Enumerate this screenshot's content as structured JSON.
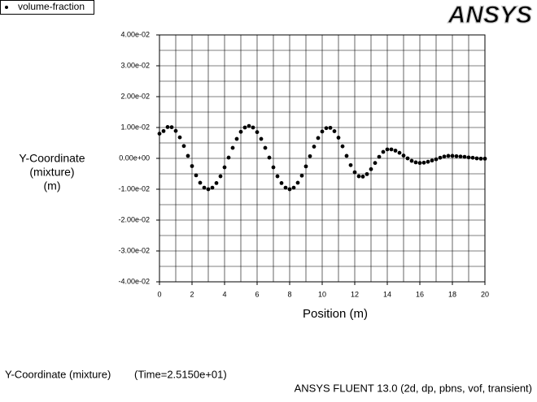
{
  "chart_data": {
    "type": "scatter",
    "logo": "ANSYS",
    "xlabel": "Position (m)",
    "ylabel_lines": [
      "Y-Coordinate",
      "(mixture)",
      "(m)"
    ],
    "footer_left": [
      "Y-Coordinate (mixture)",
      "(Time=2.5150e+01)"
    ],
    "footer_right": "ANSYS FLUENT 13.0 (2d, dp, pbns, vof, transient)",
    "xlim": [
      0,
      20
    ],
    "ylim": [
      -0.04,
      0.04
    ],
    "xticks": [
      0,
      2,
      4,
      6,
      8,
      10,
      12,
      14,
      16,
      18,
      20
    ],
    "x_minor_ticks": [
      1,
      3,
      5,
      7,
      9,
      11,
      13,
      15,
      17,
      19
    ],
    "yticks": [
      {
        "value": 0.04,
        "label": "4.00e-02"
      },
      {
        "value": 0.03,
        "label": "3.00e-02"
      },
      {
        "value": 0.02,
        "label": "2.00e-02"
      },
      {
        "value": 0.01,
        "label": "1.00e-02"
      },
      {
        "value": 0,
        "label": "0.00e+00"
      },
      {
        "value": -0.01,
        "label": "-1.00e-02"
      },
      {
        "value": -0.02,
        "label": "-2.00e-02"
      },
      {
        "value": -0.03,
        "label": "-3.00e-02"
      },
      {
        "value": -0.04,
        "label": "-4.00e-02"
      }
    ],
    "y_minor_ticks": [
      0.035,
      0.025,
      0.015,
      0.005,
      -0.005,
      -0.015,
      -0.025,
      -0.035
    ],
    "grid": true,
    "series": [
      {
        "name": "volume-fraction",
        "color": "#000000",
        "x": [
          0,
          0.25,
          0.5,
          0.75,
          1,
          1.25,
          1.5,
          1.75,
          2,
          2.25,
          2.5,
          2.75,
          3,
          3.25,
          3.5,
          3.75,
          4,
          4.25,
          4.5,
          4.75,
          5,
          5.25,
          5.5,
          5.75,
          6,
          6.25,
          6.5,
          6.75,
          7,
          7.25,
          7.5,
          7.75,
          8,
          8.25,
          8.5,
          8.75,
          9,
          9.25,
          9.5,
          9.75,
          10,
          10.25,
          10.5,
          10.75,
          11,
          11.25,
          11.5,
          11.75,
          12,
          12.25,
          12.5,
          12.75,
          13,
          13.25,
          13.5,
          13.75,
          14,
          14.25,
          14.5,
          14.75,
          15,
          15.25,
          15.5,
          15.75,
          16,
          16.25,
          16.5,
          16.75,
          17,
          17.25,
          17.5,
          17.75,
          18,
          18.25,
          18.5,
          18.75,
          19,
          19.25,
          19.5,
          19.75,
          20
        ],
        "values": [
          0.008,
          0.00885,
          0.01015,
          0.0101,
          0.0089,
          0.0068,
          0.004,
          0.0008,
          -0.0025,
          -0.0055,
          -0.0079,
          -0.0095,
          -0.01,
          -0.0095,
          -0.008,
          -0.0058,
          -0.0029,
          0.00025,
          0.0034,
          0.0063,
          0.0086,
          0.01,
          0.0105,
          0.01,
          0.0085,
          0.0063,
          0.0034,
          0.00025,
          -0.0029,
          -0.0058,
          -0.008,
          -0.0095,
          -0.01,
          -0.0095,
          -0.0079,
          -0.0056,
          -0.0026,
          0.0007,
          0.0038,
          0.0066,
          0.0087,
          0.0098,
          0.0099,
          0.0088,
          0.0067,
          0.0039,
          0.0008,
          -0.0022,
          -0.0045,
          -0.0058,
          -0.0059,
          -0.0051,
          -0.0035,
          -0.0015,
          0.0005,
          0.0021,
          0.0029,
          0.0029,
          0.0025,
          0.0018,
          0.0009,
          0,
          -0.0008,
          -0.0013,
          -0.0015,
          -0.0014,
          -0.0011,
          -0.0007,
          -0.0003,
          0.0002,
          0.0006,
          0.0008,
          0.0008,
          0.0007,
          0.0006,
          0.0005,
          0.0003,
          0.0002,
          0,
          -0.0001,
          -0.0001
        ]
      }
    ]
  }
}
